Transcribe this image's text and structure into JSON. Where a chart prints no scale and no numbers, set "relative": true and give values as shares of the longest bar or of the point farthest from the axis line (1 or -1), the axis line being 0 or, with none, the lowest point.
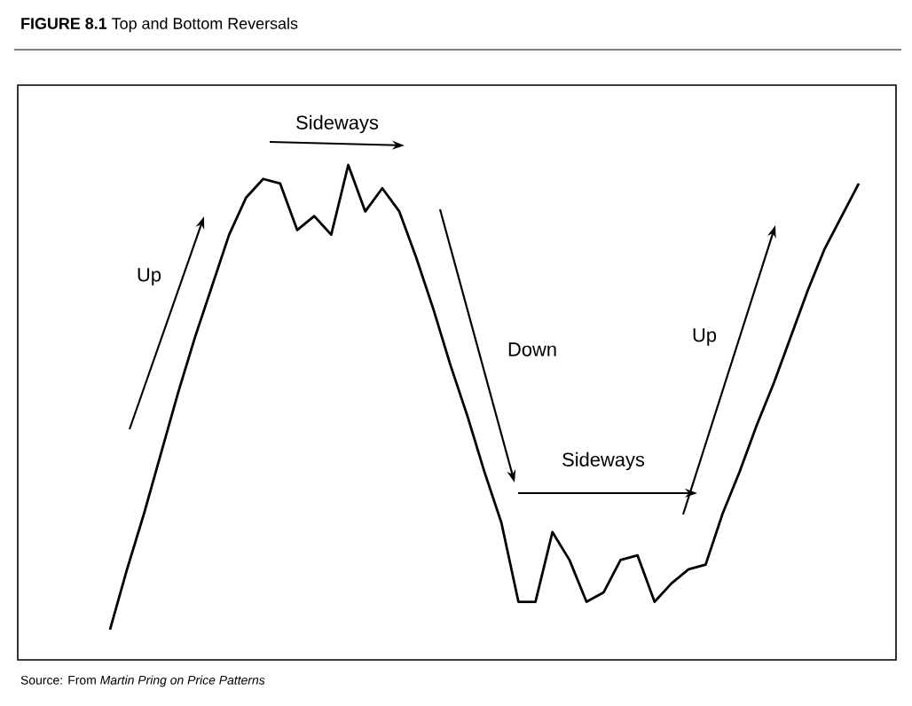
{
  "chart_data": {
    "type": "line",
    "title": "**FIGURE 8.1** Top and Bottom Reversals",
    "relative": true,
    "color": "#000000",
    "categories": [
      null,
      null,
      null,
      null,
      null,
      null,
      null,
      null,
      null,
      null,
      null,
      null,
      null,
      null,
      null,
      null,
      null,
      null,
      null,
      null,
      null,
      null,
      null,
      null,
      null,
      null,
      null,
      null,
      null,
      null,
      null,
      null,
      null,
      null,
      null,
      null,
      null,
      null,
      null,
      null,
      null,
      null,
      null,
      null,
      null
    ],
    "values": [
      0,
      0.13,
      0.25,
      0.38,
      0.51,
      0.63,
      0.74,
      0.85,
      0.93,
      0.97,
      0.96,
      0.86,
      0.89,
      0.85,
      1.0,
      0.9,
      0.95,
      0.9,
      0.8,
      0.69,
      0.57,
      0.46,
      0.34,
      0.23,
      0.06,
      0.06,
      0.21,
      0.15,
      0.06,
      0.08,
      0.15,
      0.16,
      0.06,
      0.1,
      0.13,
      0.14,
      0.25,
      0.34,
      0.44,
      0.53,
      0.63,
      0.73,
      0.82,
      0.89,
      0.96
    ],
    "annotations": [
      "Sideways",
      "Up",
      "Down",
      "Sideways",
      "Up",
      "Source: From *Martin Pring on Price Patterns*"
    ]
  }
}
